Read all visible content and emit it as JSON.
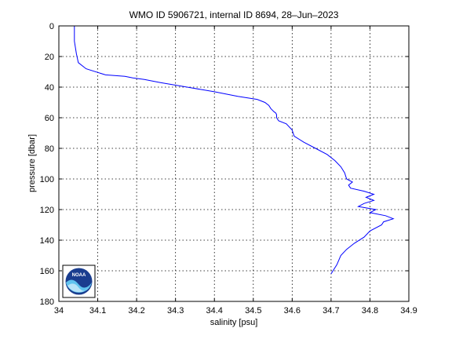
{
  "chart_data": {
    "type": "line",
    "title": "WMO ID 5906721, internal ID 8694, 28–Jun–2023",
    "xlabel": "salinity [psu]",
    "ylabel": "pressure [dbar]",
    "xlim": [
      34.0,
      34.9
    ],
    "ylim": [
      0,
      180
    ],
    "y_reversed": true,
    "grid": true,
    "x_ticks": [
      "34",
      "34.1",
      "34.2",
      "34.3",
      "34.4",
      "34.5",
      "34.6",
      "34.7",
      "34.8",
      "34.9"
    ],
    "y_ticks": [
      "0",
      "20",
      "40",
      "60",
      "80",
      "100",
      "120",
      "140",
      "160",
      "180"
    ],
    "series": [
      {
        "color": "#0000ff",
        "x": [
          34.04,
          34.04,
          34.045,
          34.05,
          34.07,
          34.12,
          34.17,
          34.19,
          34.22,
          34.26,
          34.33,
          34.4,
          34.46,
          34.51,
          34.53,
          34.54,
          34.545,
          34.553,
          34.558,
          34.56,
          34.56,
          34.565,
          34.585,
          34.6,
          34.605,
          34.63,
          34.66,
          34.69,
          34.71,
          34.725,
          34.735,
          34.74,
          34.755,
          34.745,
          34.75,
          34.785,
          34.81,
          34.79,
          34.81,
          34.785,
          34.77,
          34.815,
          34.8,
          34.84,
          34.86,
          34.835,
          34.83,
          34.8,
          34.785,
          34.76,
          34.74,
          34.725,
          34.715,
          34.7
        ],
        "y": [
          0,
          10,
          18,
          24,
          28,
          32,
          33,
          34,
          35,
          37,
          40,
          43,
          46,
          48,
          50,
          52,
          54,
          56,
          57,
          58,
          60,
          62,
          64,
          68,
          72,
          76,
          80,
          84,
          88,
          92,
          96,
          100,
          102,
          104,
          106,
          108,
          110,
          112,
          114,
          116,
          118,
          120,
          122,
          124,
          126,
          128,
          130,
          134,
          138,
          142,
          146,
          150,
          156,
          162
        ]
      }
    ]
  }
}
